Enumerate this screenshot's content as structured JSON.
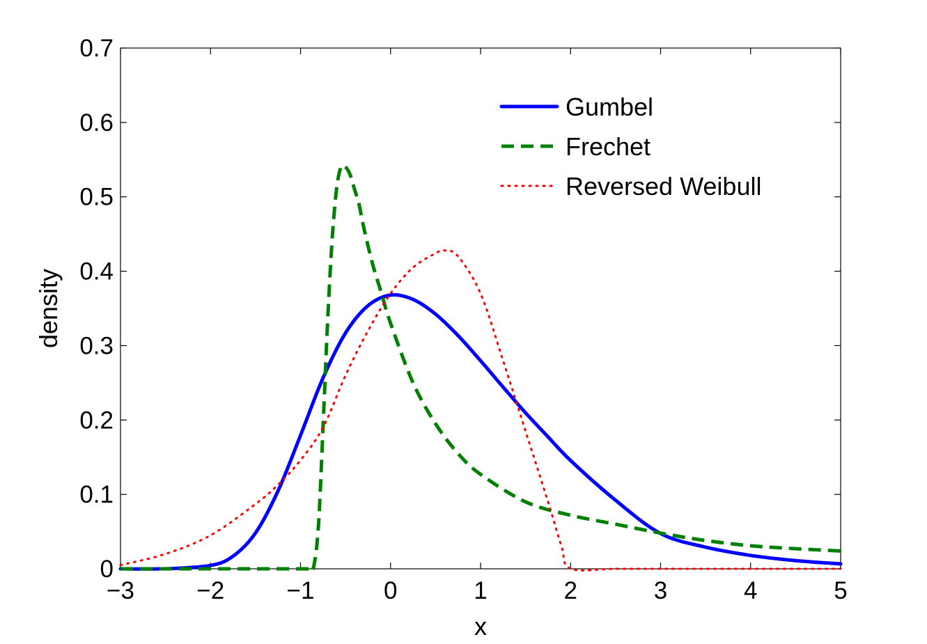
{
  "chart_data": {
    "type": "line",
    "title": "",
    "xlabel": "x",
    "ylabel": "density",
    "xlim": [
      -3,
      5
    ],
    "ylim": [
      0,
      0.7
    ],
    "xticks": [
      -3,
      -2,
      -1,
      0,
      1,
      2,
      3,
      4,
      5
    ],
    "xtick_labels": [
      "−3",
      "−2",
      "−1",
      "0",
      "1",
      "2",
      "3",
      "4",
      "5"
    ],
    "yticks": [
      0,
      0.1,
      0.2,
      0.3,
      0.4,
      0.5,
      0.6,
      0.7
    ],
    "ytick_labels": [
      "0",
      "0.1",
      "0.2",
      "0.3",
      "0.4",
      "0.5",
      "0.6",
      "0.7"
    ],
    "grid": false,
    "legend_position": "top-right",
    "series": [
      {
        "name": "Gumbel",
        "color": "#0000ff",
        "style": "solid",
        "x": [
          -3,
          -2.5,
          -2,
          -1.75,
          -1.5,
          -1.25,
          -1,
          -0.75,
          -0.5,
          -0.25,
          0,
          0.25,
          0.5,
          0.75,
          1,
          1.25,
          1.5,
          1.75,
          2,
          2.5,
          3,
          3.5,
          4,
          4.5,
          5
        ],
        "y": [
          0,
          0.0001,
          0.0045,
          0.0169,
          0.0482,
          0.1046,
          0.1794,
          0.2565,
          0.317,
          0.3537,
          0.3679,
          0.3621,
          0.3423,
          0.3135,
          0.2797,
          0.2443,
          0.2096,
          0.1773,
          0.1455,
          0.0921,
          0.0474,
          0.0291,
          0.018,
          0.011,
          0.0066
        ]
      },
      {
        "name": "Frechet",
        "color": "#008000",
        "style": "dashed",
        "x": [
          -3,
          -2,
          -1,
          -0.9,
          -0.85,
          -0.8,
          -0.75,
          -0.7,
          -0.65,
          -0.6,
          -0.55,
          -0.5,
          -0.45,
          -0.4,
          -0.35,
          -0.3,
          -0.2,
          -0.1,
          0,
          0.25,
          0.5,
          0.75,
          1,
          1.5,
          2,
          2.5,
          3,
          3.5,
          4,
          4.5,
          5
        ],
        "y": [
          0,
          0,
          0,
          0,
          0.005,
          0.06,
          0.19,
          0.33,
          0.44,
          0.51,
          0.54,
          0.54,
          0.53,
          0.51,
          0.49,
          0.46,
          0.41,
          0.37,
          0.33,
          0.25,
          0.195,
          0.155,
          0.127,
          0.09,
          0.072,
          0.06,
          0.048,
          0.038,
          0.031,
          0.027,
          0.024
        ]
      },
      {
        "name": "Reversed Weibull",
        "color": "#ff0000",
        "style": "dotted",
        "x": [
          -3,
          -2.5,
          -2,
          -1.5,
          -1.25,
          -1,
          -0.75,
          -0.5,
          -0.25,
          0,
          0.25,
          0.5,
          0.6,
          0.75,
          1,
          1.25,
          1.5,
          1.75,
          1.9,
          2,
          2.5,
          3,
          3.5,
          4,
          4.5,
          5
        ],
        "y": [
          0.005,
          0.02,
          0.045,
          0.087,
          0.113,
          0.146,
          0.19,
          0.26,
          0.32,
          0.37,
          0.405,
          0.424,
          0.428,
          0.42,
          0.37,
          0.28,
          0.185,
          0.09,
          0.03,
          0,
          0,
          0,
          0,
          0,
          0,
          0
        ]
      }
    ]
  }
}
